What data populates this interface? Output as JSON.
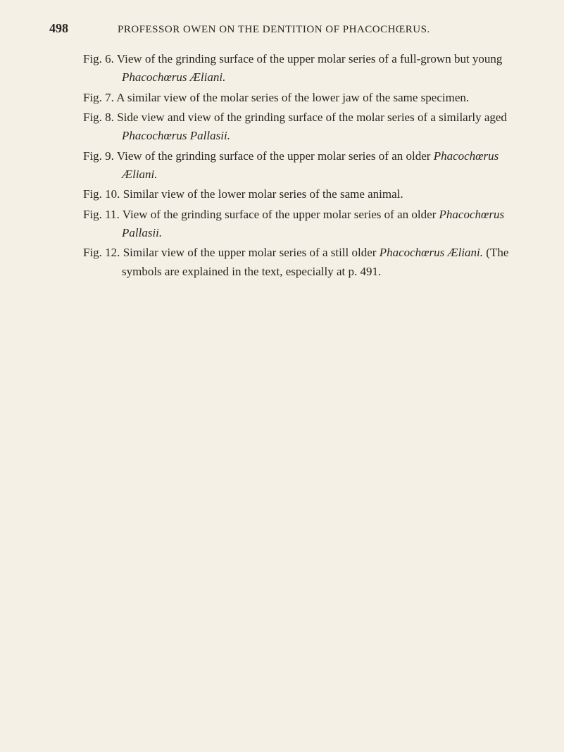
{
  "header": {
    "page_number": "498",
    "title": "PROFESSOR OWEN ON THE DENTITION OF PHACOCHŒRUS."
  },
  "figures": {
    "fig6": {
      "label": "Fig. 6.",
      "text_part1": "View of the grinding surface of the upper molar series of a full-grown but young ",
      "species": "Phacochœrus Æliani.",
      "text_part2": ""
    },
    "fig7": {
      "label": "Fig. 7.",
      "text": "A similar view of the molar series of the lower jaw of the same specimen."
    },
    "fig8": {
      "label": "Fig. 8.",
      "text_part1": "Side view and view of the grinding surface of the molar series of a similarly aged ",
      "species": "Phacochœrus Pallasii."
    },
    "fig9": {
      "label": "Fig. 9.",
      "text_part1": "View of the grinding surface of the upper molar series of an older ",
      "species": "Phacochœrus Æliani."
    },
    "fig10": {
      "label": "Fig. 10.",
      "text": "Similar view of the lower molar series of the same animal."
    },
    "fig11": {
      "label": "Fig. 11.",
      "text_part1": "View of the grinding surface of the upper molar series of an older ",
      "species": "Phacochœrus Pallasii."
    },
    "fig12": {
      "label": "Fig. 12.",
      "text_part1": "Similar view of the upper molar series of a still older ",
      "species": "Phacochœrus Æliani.",
      "text_part2": " (The symbols are explained in the text, especially at p. 491."
    }
  }
}
